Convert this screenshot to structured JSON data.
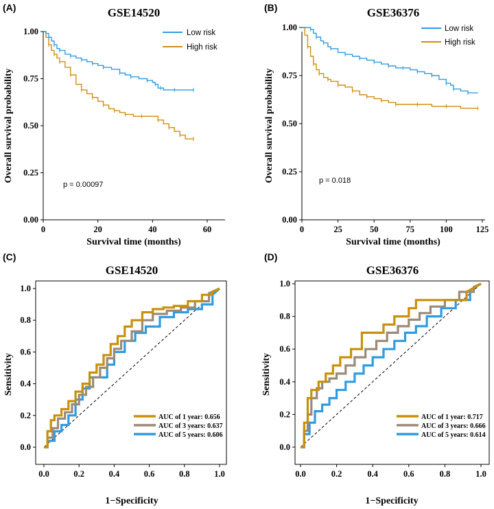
{
  "colors": {
    "low": "#2e9be0",
    "high": "#d08e0a",
    "grey": "#9a8a78",
    "blue5": "#2e9be0",
    "gold1": "#c8900a"
  },
  "panels": [
    {
      "label": "(A)",
      "chart_data": {
        "type": "line",
        "subtype": "kaplan-meier",
        "title": "GSE14520",
        "xlabel": "Survival time (months)",
        "ylabel": "Overall survival probability",
        "xlim": [
          0,
          60
        ],
        "ylim": [
          0,
          1
        ],
        "xticks": [
          "0",
          "20",
          "40",
          "60"
        ],
        "yticks": [
          "0.00",
          "0.25",
          "0.50",
          "0.75",
          "1.00"
        ],
        "annotation": "p = 0.00097",
        "legend": {
          "position": "top-right",
          "entries": [
            "Low risk",
            "High risk"
          ]
        },
        "series": [
          {
            "name": "Low risk",
            "x": [
              0,
              1,
              2,
              3,
              4,
              5,
              6,
              8,
              10,
              12,
              14,
              16,
              18,
              20,
              22,
              25,
              28,
              30,
              32,
              35,
              38,
              40,
              41,
              42,
              43,
              44,
              48,
              52,
              55
            ],
            "y": [
              1.0,
              0.99,
              0.97,
              0.95,
              0.93,
              0.91,
              0.9,
              0.88,
              0.87,
              0.86,
              0.85,
              0.84,
              0.83,
              0.82,
              0.81,
              0.8,
              0.78,
              0.77,
              0.76,
              0.75,
              0.74,
              0.73,
              0.72,
              0.7,
              0.7,
              0.69,
              0.69,
              0.69,
              0.69
            ]
          },
          {
            "name": "High risk",
            "x": [
              0,
              1,
              2,
              3,
              4,
              5,
              6,
              8,
              10,
              12,
              14,
              16,
              18,
              20,
              22,
              24,
              26,
              28,
              30,
              33,
              36,
              40,
              42,
              44,
              46,
              48,
              50,
              52,
              55
            ],
            "y": [
              1.0,
              0.97,
              0.93,
              0.9,
              0.88,
              0.86,
              0.84,
              0.81,
              0.77,
              0.72,
              0.69,
              0.67,
              0.65,
              0.63,
              0.61,
              0.59,
              0.58,
              0.57,
              0.56,
              0.55,
              0.55,
              0.55,
              0.53,
              0.51,
              0.49,
              0.47,
              0.45,
              0.43,
              0.43
            ]
          }
        ]
      }
    },
    {
      "label": "(B)",
      "chart_data": {
        "type": "line",
        "subtype": "kaplan-meier",
        "title": "GSE36376",
        "xlabel": "Survival time (months)",
        "ylabel": "Overall survival probability",
        "xlim": [
          0,
          125
        ],
        "ylim": [
          0,
          1
        ],
        "xticks": [
          "0",
          "25",
          "50",
          "75",
          "100",
          "125"
        ],
        "yticks": [
          "0.00",
          "0.25",
          "0.50",
          "0.75",
          "1.00"
        ],
        "annotation": "p = 0.018",
        "legend": {
          "position": "top-right",
          "entries": [
            "Low risk",
            "High risk"
          ]
        },
        "series": [
          {
            "name": "Low risk",
            "x": [
              0,
              3,
              6,
              8,
              10,
              13,
              15,
              18,
              20,
              25,
              30,
              35,
              40,
              45,
              50,
              55,
              60,
              65,
              70,
              75,
              80,
              85,
              90,
              95,
              100,
              103,
              105,
              110,
              115,
              122
            ],
            "y": [
              1.0,
              1.0,
              0.99,
              0.97,
              0.95,
              0.93,
              0.92,
              0.9,
              0.89,
              0.87,
              0.86,
              0.85,
              0.84,
              0.83,
              0.82,
              0.81,
              0.8,
              0.79,
              0.79,
              0.78,
              0.77,
              0.76,
              0.75,
              0.73,
              0.71,
              0.7,
              0.68,
              0.67,
              0.66,
              0.66
            ]
          },
          {
            "name": "High risk",
            "x": [
              0,
              2,
              4,
              6,
              8,
              10,
              12,
              15,
              18,
              20,
              25,
              30,
              35,
              40,
              45,
              50,
              55,
              60,
              65,
              70,
              80,
              90,
              100,
              110,
              122
            ],
            "y": [
              1.0,
              0.96,
              0.9,
              0.85,
              0.81,
              0.78,
              0.76,
              0.74,
              0.73,
              0.72,
              0.7,
              0.69,
              0.67,
              0.65,
              0.64,
              0.63,
              0.62,
              0.61,
              0.6,
              0.6,
              0.6,
              0.59,
              0.59,
              0.58,
              0.58
            ]
          }
        ]
      }
    },
    {
      "label": "(C)",
      "chart_data": {
        "type": "line",
        "subtype": "roc",
        "title": "GSE14520",
        "xlabel": "1−Specificity",
        "ylabel": "Sensitivity",
        "xlim": [
          0,
          1
        ],
        "ylim": [
          0,
          1
        ],
        "xticks": [
          "0.0",
          "0.2",
          "0.4",
          "0.6",
          "0.8",
          "1.0"
        ],
        "yticks": [
          "0.0",
          "0.2",
          "0.4",
          "0.6",
          "0.8",
          "1.0"
        ],
        "legend": {
          "position": "bottom-right",
          "entries": [
            "AUC of 1 year: 0.656",
            "AUC of 3 years: 0.637",
            "AUC of 5 years: 0.606"
          ]
        },
        "series": [
          {
            "name": "AUC of 1 year: 0.656",
            "x": [
              0,
              0.02,
              0.02,
              0.04,
              0.04,
              0.06,
              0.06,
              0.1,
              0.1,
              0.14,
              0.14,
              0.18,
              0.18,
              0.22,
              0.22,
              0.26,
              0.26,
              0.3,
              0.3,
              0.34,
              0.34,
              0.38,
              0.38,
              0.42,
              0.42,
              0.46,
              0.46,
              0.5,
              0.5,
              0.56,
              0.56,
              0.62,
              0.62,
              0.68,
              0.68,
              0.74,
              0.74,
              0.82,
              0.82,
              0.9,
              0.9,
              0.96,
              0.96,
              1.0
            ],
            "y": [
              0,
              0,
              0.1,
              0.1,
              0.17,
              0.17,
              0.2,
              0.2,
              0.24,
              0.24,
              0.29,
              0.29,
              0.35,
              0.35,
              0.4,
              0.4,
              0.47,
              0.47,
              0.52,
              0.52,
              0.58,
              0.58,
              0.65,
              0.65,
              0.7,
              0.7,
              0.76,
              0.76,
              0.8,
              0.8,
              0.85,
              0.85,
              0.87,
              0.87,
              0.88,
              0.88,
              0.89,
              0.89,
              0.92,
              0.92,
              0.96,
              0.96,
              0.98,
              1.0
            ]
          },
          {
            "name": "AUC of 3 years: 0.637",
            "x": [
              0,
              0.02,
              0.02,
              0.05,
              0.05,
              0.08,
              0.08,
              0.12,
              0.12,
              0.16,
              0.16,
              0.2,
              0.2,
              0.24,
              0.24,
              0.28,
              0.28,
              0.32,
              0.32,
              0.36,
              0.36,
              0.4,
              0.4,
              0.44,
              0.44,
              0.5,
              0.5,
              0.56,
              0.56,
              0.62,
              0.62,
              0.7,
              0.7,
              0.78,
              0.78,
              0.86,
              0.86,
              0.94,
              0.94,
              1.0
            ],
            "y": [
              0,
              0,
              0.06,
              0.06,
              0.12,
              0.12,
              0.18,
              0.18,
              0.22,
              0.22,
              0.27,
              0.27,
              0.33,
              0.33,
              0.38,
              0.38,
              0.44,
              0.44,
              0.5,
              0.5,
              0.56,
              0.56,
              0.62,
              0.62,
              0.67,
              0.67,
              0.73,
              0.73,
              0.8,
              0.8,
              0.84,
              0.84,
              0.86,
              0.86,
              0.88,
              0.88,
              0.92,
              0.92,
              0.97,
              1.0
            ]
          },
          {
            "name": "AUC of 5 years: 0.606",
            "x": [
              0,
              0.02,
              0.02,
              0.06,
              0.06,
              0.1,
              0.1,
              0.14,
              0.14,
              0.18,
              0.18,
              0.22,
              0.22,
              0.26,
              0.26,
              0.3,
              0.3,
              0.36,
              0.36,
              0.4,
              0.4,
              0.46,
              0.46,
              0.52,
              0.52,
              0.58,
              0.58,
              0.66,
              0.66,
              0.74,
              0.74,
              0.82,
              0.82,
              0.9,
              0.9,
              0.96,
              0.96,
              1.0
            ],
            "y": [
              0,
              0,
              0.04,
              0.04,
              0.1,
              0.1,
              0.14,
              0.14,
              0.2,
              0.2,
              0.3,
              0.3,
              0.37,
              0.37,
              0.44,
              0.44,
              0.44,
              0.44,
              0.52,
              0.52,
              0.6,
              0.6,
              0.67,
              0.67,
              0.72,
              0.72,
              0.76,
              0.76,
              0.82,
              0.82,
              0.85,
              0.85,
              0.87,
              0.87,
              0.9,
              0.9,
              0.96,
              1.0
            ]
          }
        ]
      }
    },
    {
      "label": "(D)",
      "chart_data": {
        "type": "line",
        "subtype": "roc",
        "title": "GSE36376",
        "xlabel": "1−Specificity",
        "ylabel": "Sensitivity",
        "xlim": [
          0,
          1
        ],
        "ylim": [
          0,
          1
        ],
        "xticks": [
          "0.0",
          "0.2",
          "0.4",
          "0.6",
          "0.8",
          "1.0"
        ],
        "yticks": [
          "0.0",
          "0.2",
          "0.4",
          "0.6",
          "0.8",
          "1.0"
        ],
        "legend": {
          "position": "bottom-right",
          "entries": [
            "AUC of 1 year: 0.717",
            "AUC of 3 years: 0.666",
            "AUC of 5 years: 0.614"
          ]
        },
        "series": [
          {
            "name": "AUC of 1 year: 0.717",
            "x": [
              0,
              0.02,
              0.02,
              0.04,
              0.04,
              0.06,
              0.06,
              0.1,
              0.1,
              0.14,
              0.14,
              0.18,
              0.18,
              0.22,
              0.22,
              0.28,
              0.28,
              0.34,
              0.34,
              0.46,
              0.46,
              0.52,
              0.52,
              0.6,
              0.6,
              0.64,
              0.64,
              0.7,
              0.7,
              0.92,
              0.92,
              1.0
            ],
            "y": [
              0,
              0,
              0.15,
              0.15,
              0.3,
              0.3,
              0.35,
              0.35,
              0.4,
              0.4,
              0.45,
              0.45,
              0.5,
              0.5,
              0.55,
              0.55,
              0.6,
              0.6,
              0.7,
              0.7,
              0.75,
              0.75,
              0.8,
              0.8,
              0.85,
              0.85,
              0.9,
              0.9,
              0.9,
              0.9,
              0.95,
              1.0
            ]
          },
          {
            "name": "AUC of 3 years: 0.666",
            "x": [
              0,
              0.02,
              0.02,
              0.04,
              0.04,
              0.06,
              0.06,
              0.09,
              0.09,
              0.12,
              0.12,
              0.16,
              0.16,
              0.2,
              0.2,
              0.25,
              0.25,
              0.3,
              0.3,
              0.36,
              0.36,
              0.42,
              0.42,
              0.48,
              0.48,
              0.54,
              0.54,
              0.6,
              0.6,
              0.66,
              0.66,
              0.72,
              0.72,
              0.8,
              0.8,
              0.88,
              0.88,
              0.96,
              0.96,
              1.0
            ],
            "y": [
              0,
              0,
              0.1,
              0.1,
              0.2,
              0.2,
              0.3,
              0.3,
              0.36,
              0.36,
              0.4,
              0.4,
              0.42,
              0.42,
              0.45,
              0.45,
              0.5,
              0.5,
              0.55,
              0.55,
              0.6,
              0.6,
              0.65,
              0.65,
              0.7,
              0.7,
              0.74,
              0.74,
              0.78,
              0.78,
              0.82,
              0.82,
              0.86,
              0.86,
              0.9,
              0.9,
              0.95,
              0.95,
              0.98,
              1.0
            ]
          },
          {
            "name": "AUC of 5 years: 0.614",
            "x": [
              0,
              0.02,
              0.02,
              0.05,
              0.05,
              0.08,
              0.08,
              0.12,
              0.12,
              0.16,
              0.16,
              0.2,
              0.2,
              0.25,
              0.25,
              0.3,
              0.3,
              0.35,
              0.35,
              0.4,
              0.4,
              0.46,
              0.46,
              0.52,
              0.52,
              0.58,
              0.58,
              0.64,
              0.64,
              0.7,
              0.7,
              0.78,
              0.78,
              0.86,
              0.86,
              0.94,
              0.94,
              1.0
            ],
            "y": [
              0,
              0,
              0.08,
              0.08,
              0.15,
              0.15,
              0.22,
              0.22,
              0.26,
              0.26,
              0.3,
              0.3,
              0.35,
              0.35,
              0.4,
              0.4,
              0.45,
              0.45,
              0.5,
              0.5,
              0.55,
              0.55,
              0.6,
              0.6,
              0.65,
              0.65,
              0.7,
              0.7,
              0.74,
              0.74,
              0.8,
              0.8,
              0.85,
              0.85,
              0.9,
              0.9,
              0.96,
              1.0
            ]
          }
        ]
      }
    }
  ]
}
